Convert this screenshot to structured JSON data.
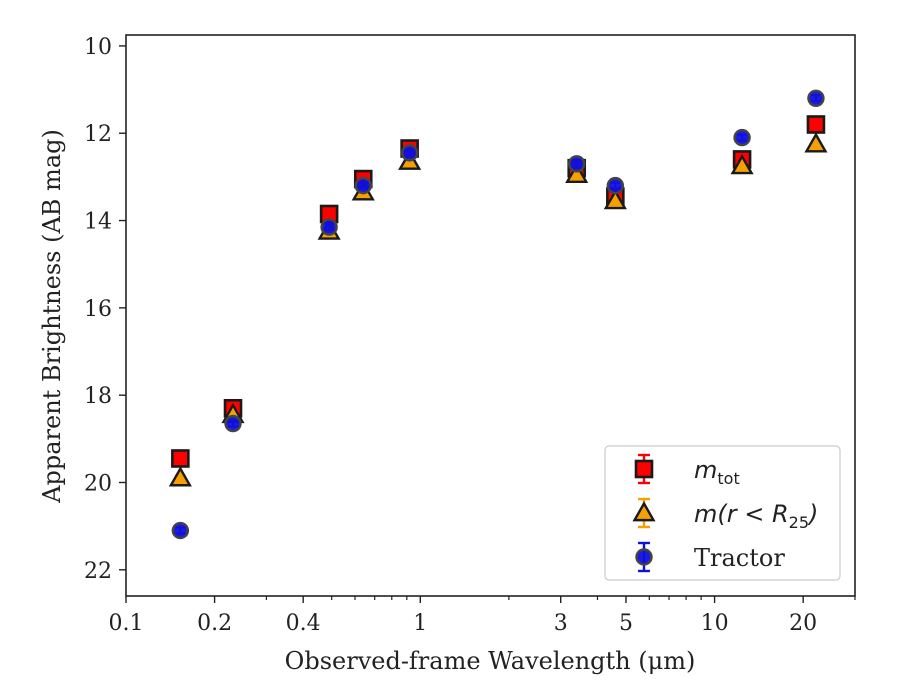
{
  "chart_data": {
    "type": "scatter",
    "xlabel": "Observed-frame Wavelength (μm)",
    "ylabel": "Apparent Brightness (AB mag)",
    "xscale": "log",
    "xlim": [
      0.1,
      30
    ],
    "ylim": [
      22.6,
      9.75
    ],
    "y_inverted": true,
    "xticks": [
      0.1,
      0.2,
      0.4,
      1,
      3,
      5,
      10,
      20
    ],
    "xtick_labels": [
      "0.1",
      "0.2",
      "0.4",
      "1",
      "3",
      "5",
      "10",
      "20"
    ],
    "yticks": [
      10,
      12,
      14,
      16,
      18,
      20,
      22
    ],
    "ytick_labels": [
      "10",
      "12",
      "14",
      "16",
      "18",
      "20",
      "22"
    ],
    "grid": false,
    "legend_position": "lower-right",
    "series": [
      {
        "name": "m_tot",
        "legend_main": "m",
        "legend_sub": "tot",
        "marker": "square",
        "color": "#ff0000",
        "edge": "#1a1a1a",
        "points": [
          [
            0.153,
            19.45
          ],
          [
            0.231,
            18.3
          ],
          [
            0.49,
            13.85
          ],
          [
            0.64,
            13.05
          ],
          [
            0.92,
            12.35
          ],
          [
            3.4,
            12.8
          ],
          [
            4.6,
            13.45
          ],
          [
            12.4,
            12.6
          ],
          [
            22.1,
            11.8
          ]
        ]
      },
      {
        "name": "m(r < R25)",
        "legend_main": "m(r < R",
        "legend_sub": "25",
        "legend_tail": ")",
        "marker": "triangle",
        "color": "#f5a000",
        "edge": "#1a1a1a",
        "points": [
          [
            0.153,
            19.9
          ],
          [
            0.231,
            18.45
          ],
          [
            0.49,
            14.25
          ],
          [
            0.64,
            13.35
          ],
          [
            0.92,
            12.65
          ],
          [
            3.4,
            12.95
          ],
          [
            4.6,
            13.55
          ],
          [
            12.4,
            12.75
          ],
          [
            22.1,
            12.25
          ]
        ]
      },
      {
        "name": "Tractor",
        "marker": "circle",
        "color": "#1010dd",
        "edge": "#444444",
        "points": [
          [
            0.153,
            21.1
          ],
          [
            0.231,
            18.65
          ],
          [
            0.49,
            14.15
          ],
          [
            0.64,
            13.2
          ],
          [
            0.92,
            12.45
          ],
          [
            3.4,
            12.7
          ],
          [
            4.6,
            13.2
          ],
          [
            12.4,
            12.1
          ],
          [
            22.1,
            11.2
          ]
        ]
      }
    ]
  }
}
